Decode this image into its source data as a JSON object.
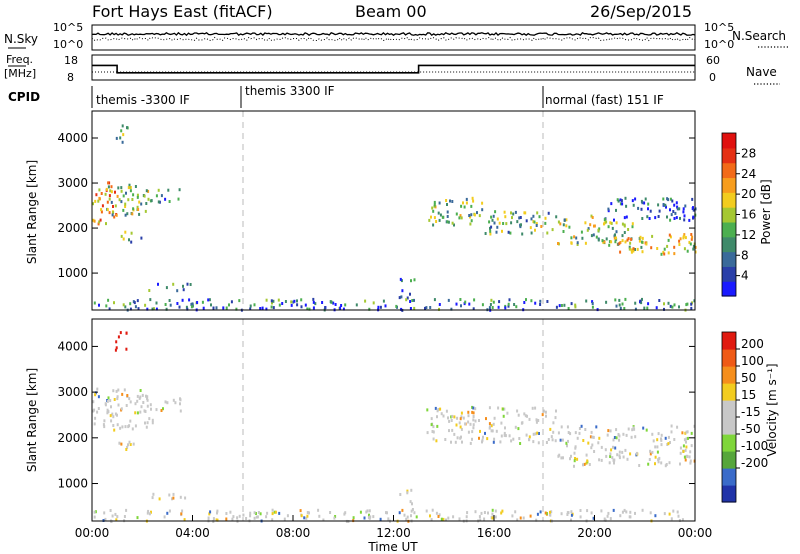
{
  "header": {
    "title": "Fort Hays East (fitACF)",
    "beam": "Beam 00",
    "date": "26/Sep/2015"
  },
  "top_panels": {
    "nsky_label": "N.Sky",
    "nsky_ticks": [
      "10^5",
      "10^0"
    ],
    "nsearch_label": "N.Search",
    "nsearch_ticks": [
      "10^5",
      "10^0"
    ],
    "freq_label_1": "Freq.",
    "freq_label_2": "[MHz]",
    "freq_ticks": [
      "18",
      "8"
    ],
    "nave_label": "Nave",
    "nave_ticks": [
      "60",
      "0"
    ],
    "cpid_label": "CPID"
  },
  "chart_data": [
    {
      "type": "line",
      "panel": "noise",
      "series": [
        {
          "name": "N.Sky",
          "style": "solid"
        },
        {
          "name": "N.Search",
          "style": "dotted"
        }
      ]
    },
    {
      "type": "line",
      "panel": "frequency",
      "x_hours": [
        0,
        1,
        1,
        13,
        13,
        24
      ],
      "freq_mhz": [
        14,
        14,
        10.5,
        10.5,
        14,
        14
      ],
      "series": [
        {
          "name": "Freq.",
          "style": "solid"
        },
        {
          "name": "Nave",
          "style": "dotted"
        }
      ]
    },
    {
      "type": "table",
      "panel": "cpid",
      "segments": [
        {
          "start_h": 0,
          "end_h": 6,
          "label": "themis -3300 IF"
        },
        {
          "start_h": 6,
          "end_h": 18,
          "label": "themis 3300 IF"
        },
        {
          "start_h": 18,
          "end_h": 24,
          "label": "normal (fast) 151 IF"
        }
      ]
    },
    {
      "type": "heatmap",
      "panel": "power",
      "ylabel": "Slant Range [km]",
      "yticks": [
        1000,
        2000,
        3000,
        4000
      ],
      "ylim": [
        180,
        4600
      ],
      "xlim_h": [
        0,
        24
      ],
      "colorbar": {
        "label": "Power [dB]",
        "ticks": [
          "4",
          "8",
          "12",
          "16",
          "20",
          "24",
          "28"
        ],
        "colors": [
          "#1a1aff",
          "#2a3fa8",
          "#3a6a9a",
          "#3f8a6a",
          "#4caf50",
          "#a5c832",
          "#f2cc1f",
          "#f79d1d",
          "#f26a18",
          "#e53014",
          "#e0110f"
        ]
      },
      "echo_regions": [
        {
          "h0": 0.0,
          "h1": 1.0,
          "r0": 2100,
          "r1": 3100,
          "level": 0.7
        },
        {
          "h0": 0.5,
          "h1": 2.2,
          "r0": 2300,
          "r1": 3000,
          "level": 0.45
        },
        {
          "h0": 1.0,
          "h1": 2.0,
          "r0": 1700,
          "r1": 1950,
          "level": 0.35
        },
        {
          "h0": 0.9,
          "h1": 1.4,
          "r0": 3900,
          "r1": 4350,
          "level": 0.4
        },
        {
          "h0": 2.2,
          "h1": 3.5,
          "r0": 2600,
          "r1": 2900,
          "level": 0.3
        },
        {
          "h0": 2.2,
          "h1": 4.0,
          "r0": 640,
          "r1": 800,
          "level": 0.3
        },
        {
          "h0": 12.2,
          "h1": 12.8,
          "r0": 400,
          "r1": 900,
          "level": 0.2
        },
        {
          "h0": 13.3,
          "h1": 15.5,
          "r0": 2100,
          "r1": 2700,
          "level": 0.45
        },
        {
          "h0": 15.5,
          "h1": 18.5,
          "r0": 1900,
          "r1": 2400,
          "level": 0.4
        },
        {
          "h0": 18.5,
          "h1": 21.5,
          "r0": 1650,
          "r1": 2300,
          "level": 0.45
        },
        {
          "h0": 20.5,
          "h1": 24.0,
          "r0": 1450,
          "r1": 1900,
          "level": 0.55
        },
        {
          "h0": 20.5,
          "h1": 24.0,
          "r0": 2200,
          "r1": 2700,
          "level": 0.2
        },
        {
          "h0": 0.0,
          "h1": 24.0,
          "r0": 200,
          "r1": 450,
          "level": 0.25
        }
      ]
    },
    {
      "type": "heatmap",
      "panel": "velocity",
      "ylabel": "Slant Range [km]",
      "yticks": [
        1000,
        2000,
        3000,
        4000
      ],
      "ylim": [
        180,
        4600
      ],
      "xlim_h": [
        0,
        24
      ],
      "xlabel": "Time UT",
      "xticks": [
        "00:00",
        "04:00",
        "08:00",
        "12:00",
        "16:00",
        "20:00",
        "00:00"
      ],
      "colorbar": {
        "label": "Velocity [m s⁻¹]",
        "ticks": [
          "200",
          "100",
          "50",
          "15",
          "-15",
          "-50",
          "-100",
          "-200"
        ],
        "colors": [
          "#2033a8",
          "#3a6bc9",
          "#56a63b",
          "#7fd63a",
          "#c8c8c8",
          "#c8c8c8",
          "#f2cc1f",
          "#f58e1c",
          "#ef5a16",
          "#e01a10"
        ]
      },
      "echo_regions": [
        {
          "h0": 0.0,
          "h1": 2.5,
          "r0": 2200,
          "r1": 3100,
          "level": 0.5
        },
        {
          "h0": 0.9,
          "h1": 1.4,
          "r0": 3950,
          "r1": 4350,
          "level": 0.95
        },
        {
          "h0": 1.0,
          "h1": 2.0,
          "r0": 1750,
          "r1": 1950,
          "level": 0.5
        },
        {
          "h0": 2.2,
          "h1": 3.5,
          "r0": 2600,
          "r1": 2900,
          "level": 0.6
        },
        {
          "h0": 2.2,
          "h1": 4.0,
          "r0": 640,
          "r1": 800,
          "level": 0.3
        },
        {
          "h0": 12.2,
          "h1": 12.8,
          "r0": 450,
          "r1": 900,
          "level": 0.5
        },
        {
          "h0": 13.3,
          "h1": 18.5,
          "r0": 1900,
          "r1": 2700,
          "level": 0.5
        },
        {
          "h0": 18.5,
          "h1": 24.0,
          "r0": 1400,
          "r1": 2300,
          "level": 0.5
        },
        {
          "h0": 0.0,
          "h1": 24.0,
          "r0": 200,
          "r1": 450,
          "level": 0.25
        }
      ]
    }
  ]
}
